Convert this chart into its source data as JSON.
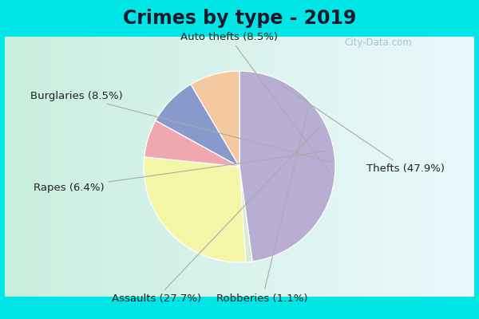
{
  "title": "Crimes by type - 2019",
  "slices": [
    {
      "label": "Thefts",
      "pct": 47.9,
      "color": "#b8aed4"
    },
    {
      "label": "Robberies",
      "pct": 1.1,
      "color": "#d4edd4"
    },
    {
      "label": "Assaults",
      "pct": 27.7,
      "color": "#f5f5a8"
    },
    {
      "label": "Rapes",
      "pct": 6.4,
      "color": "#f0a8b0"
    },
    {
      "label": "Burglaries",
      "pct": 8.5,
      "color": "#8899cc"
    },
    {
      "label": "Auto thefts",
      "pct": 8.5,
      "color": "#f5c9a0"
    }
  ],
  "title_fontsize": 17,
  "label_fontsize": 9.5,
  "cyan_color": "#00e5e5",
  "inner_bg_left": "#c8eedd",
  "inner_bg_right": "#e8f4f8",
  "watermark": "City-Data.com",
  "title_color": "#1a1a2e",
  "label_color": "#222222"
}
